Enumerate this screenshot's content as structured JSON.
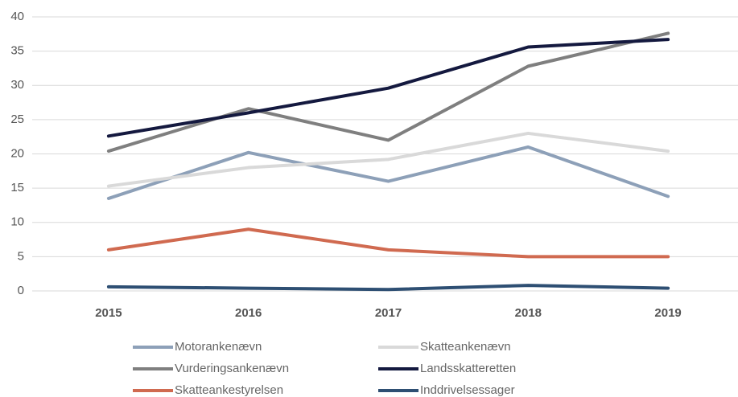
{
  "chart_data": {
    "type": "line",
    "categories": [
      "2015",
      "2016",
      "2017",
      "2018",
      "2019"
    ],
    "series": [
      {
        "name": "Motorankenævn",
        "color": "#8da0b8",
        "values": [
          13.5,
          20.2,
          16,
          21,
          13.8
        ]
      },
      {
        "name": "Skatteankenævn",
        "color": "#d9d9d9",
        "values": [
          15.3,
          18,
          19.2,
          23,
          20.4
        ]
      },
      {
        "name": "Vurderingsankenævn",
        "color": "#7f7f7f",
        "values": [
          20.4,
          26.6,
          22,
          32.8,
          37.6
        ]
      },
      {
        "name": "Landsskatteretten",
        "color": "#14193f",
        "values": [
          22.6,
          26,
          29.6,
          35.6,
          36.7
        ]
      },
      {
        "name": "Skatteankestyrelsen",
        "color": "#d06a50",
        "values": [
          6,
          9,
          6,
          5,
          5
        ]
      },
      {
        "name": "Inddrivelsessager",
        "color": "#2e4f73",
        "values": [
          0.6,
          0.4,
          0.2,
          0.8,
          0.4
        ]
      }
    ],
    "ylim": [
      0,
      40
    ],
    "yticks": [
      0,
      5,
      10,
      15,
      20,
      25,
      30,
      35,
      40
    ],
    "grid": true,
    "legend": "bottom"
  }
}
